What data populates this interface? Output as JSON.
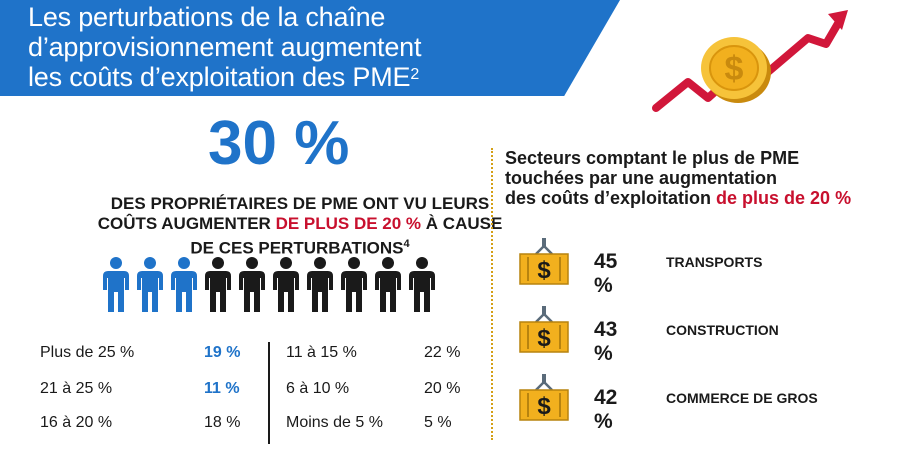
{
  "header": {
    "title_line1": "Les perturbations de la chaîne",
    "title_line2": "d’approvisionnement augmentent",
    "title_line3": "les coûts d’exploitation des PME",
    "title_sup": "2"
  },
  "stat": {
    "value": "30 %",
    "desc_line1": "DES PROPRIÉTAIRES DE PME ONT VU LEURS",
    "desc_line2_a": "COÛTS AUGMENTER ",
    "desc_line2_b": "DE PLUS DE 20 %",
    "desc_line2_c": " À CAUSE",
    "desc_line3": "DE CES PERTURBATIONS",
    "desc_sup": "4",
    "people_highlighted": 3,
    "people_total": 10,
    "colors": {
      "highlight": "#1f73c9",
      "default": "#1a1a1a"
    }
  },
  "distribution": {
    "left": [
      {
        "label": "Plus de 25 %",
        "value": "19 %",
        "highlight": true
      },
      {
        "label": "21 à 25 %",
        "value": "11 %",
        "highlight": true
      },
      {
        "label": "16 à 20 %",
        "value": "18 %",
        "highlight": false
      }
    ],
    "right": [
      {
        "label": "11 à 15 %",
        "value": "22 %"
      },
      {
        "label": "6 à 10 %",
        "value": "20 %"
      },
      {
        "label": "Moins de 5 %",
        "value": "5 %"
      }
    ]
  },
  "sectors": {
    "title_line1": "Secteurs comptant le plus de PME",
    "title_line2": "touchées par une augmentation",
    "title_line3_a": "des coûts d’exploitation ",
    "title_line3_b": "de plus de 20 %",
    "items": [
      {
        "pct": "45 %",
        "name": "TRANSPORTS"
      },
      {
        "pct": "43 %",
        "name": "CONSTRUCTION"
      },
      {
        "pct": "42 %",
        "name": "COMMERCE DE GROS"
      }
    ]
  },
  "colors": {
    "brand_blue": "#1f73c9",
    "accent_red": "#c8102e",
    "gold": "#f2b01e"
  }
}
